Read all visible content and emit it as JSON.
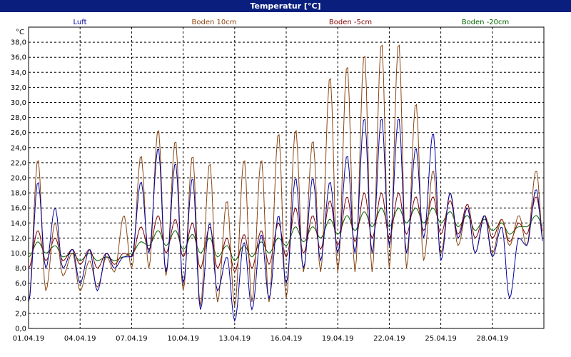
{
  "chart_data": {
    "type": "line",
    "title": "Temperatur [°C]",
    "ylabel": "°C",
    "ylim": [
      0,
      40
    ],
    "y_ticks": [
      "0,0",
      "2,0",
      "4,0",
      "6,0",
      "8,0",
      "10,0",
      "12,0",
      "14,0",
      "16,0",
      "18,0",
      "20,0",
      "22,0",
      "24,0",
      "26,0",
      "28,0",
      "30,0",
      "32,0",
      "34,0",
      "36,0",
      "38,0"
    ],
    "y_tick_values": [
      0,
      2,
      4,
      6,
      8,
      10,
      12,
      14,
      16,
      18,
      20,
      22,
      24,
      26,
      28,
      30,
      32,
      34,
      36,
      38
    ],
    "x_start": "01.04.19",
    "x_end": "01.05.19",
    "x_ticks": [
      "01.04.19",
      "04.04.19",
      "07.04.19",
      "10.04.19",
      "13.04.19",
      "16.04.19",
      "19.04.19",
      "22.04.19",
      "25.04.19",
      "28.04.19"
    ],
    "grid": true,
    "legend_position": "top",
    "series": [
      {
        "name": "Luft",
        "color": "#0000a0",
        "daily_max": [
          19.5,
          16.0,
          10.5,
          10.5,
          10.0,
          9.5,
          19.5,
          24.0,
          22.0,
          20.0,
          14.0,
          9.5,
          11.5,
          12.5,
          15.0,
          20.0,
          20.0,
          19.5,
          23.0,
          28.0,
          28.0,
          28.0,
          24.0,
          26.0,
          18.0,
          16.0,
          15.0,
          13.5,
          12.0,
          18.5
        ],
        "daily_min": [
          3.5,
          8.0,
          8.0,
          6.0,
          5.0,
          8.0,
          9.5,
          10.0,
          7.5,
          6.0,
          2.5,
          5.0,
          1.0,
          2.5,
          4.0,
          6.0,
          8.0,
          9.0,
          10.0,
          10.0,
          10.0,
          11.0,
          10.0,
          12.0,
          9.0,
          12.0,
          10.0,
          9.5,
          4.0,
          11.0
        ]
      },
      {
        "name": "Boden 10cm",
        "color": "#8b4513",
        "daily_max": [
          22.5,
          14.0,
          10.0,
          9.0,
          9.5,
          15.0,
          23.0,
          26.5,
          25.0,
          23.0,
          22.0,
          17.0,
          22.5,
          22.5,
          26.0,
          26.5,
          25.0,
          33.5,
          35.0,
          36.5,
          38.0,
          38.0,
          30.0,
          21.0,
          18.0,
          16.0,
          15.0,
          14.5,
          15.0,
          21.0
        ],
        "daily_min": [
          3.5,
          5.0,
          7.0,
          5.0,
          5.5,
          7.5,
          8.0,
          8.0,
          7.0,
          5.0,
          3.0,
          3.5,
          3.0,
          3.5,
          3.5,
          4.0,
          7.5,
          7.5,
          7.5,
          7.5,
          7.5,
          8.0,
          8.0,
          9.0,
          10.0,
          11.0,
          10.0,
          10.0,
          11.0,
          11.0
        ]
      },
      {
        "name": "Boden -5cm",
        "color": "#800000",
        "daily_max": [
          13.0,
          12.0,
          10.5,
          10.5,
          10.0,
          10.0,
          13.5,
          15.0,
          14.5,
          14.0,
          13.5,
          12.0,
          12.5,
          13.0,
          14.0,
          16.0,
          15.0,
          17.0,
          17.5,
          18.0,
          18.0,
          18.0,
          17.5,
          17.5,
          17.0,
          16.5,
          15.0,
          14.5,
          14.0,
          17.5
        ],
        "daily_min": [
          8.0,
          9.0,
          9.0,
          8.5,
          8.0,
          8.5,
          9.5,
          10.5,
          10.0,
          9.5,
          8.0,
          8.0,
          7.5,
          8.0,
          8.5,
          9.5,
          10.0,
          10.5,
          11.0,
          11.5,
          12.0,
          12.0,
          12.5,
          13.0,
          12.5,
          12.5,
          12.0,
          12.0,
          11.5,
          12.5
        ]
      },
      {
        "name": "Boden -20cm",
        "color": "#006400",
        "daily_max": [
          11.5,
          11.0,
          10.0,
          10.0,
          9.5,
          9.5,
          11.5,
          13.0,
          13.0,
          12.5,
          12.0,
          11.0,
          11.0,
          11.5,
          12.0,
          13.5,
          13.5,
          14.5,
          15.0,
          15.5,
          16.0,
          16.0,
          16.0,
          16.0,
          15.5,
          15.0,
          14.5,
          14.0,
          13.5,
          15.0
        ],
        "daily_min": [
          9.5,
          10.0,
          9.5,
          9.0,
          9.0,
          9.0,
          10.0,
          11.0,
          11.0,
          10.5,
          10.0,
          9.5,
          9.0,
          9.5,
          10.0,
          11.0,
          11.5,
          12.0,
          12.5,
          13.0,
          13.5,
          13.5,
          14.0,
          14.0,
          14.0,
          13.5,
          13.0,
          13.0,
          12.5,
          13.5
        ]
      }
    ]
  }
}
